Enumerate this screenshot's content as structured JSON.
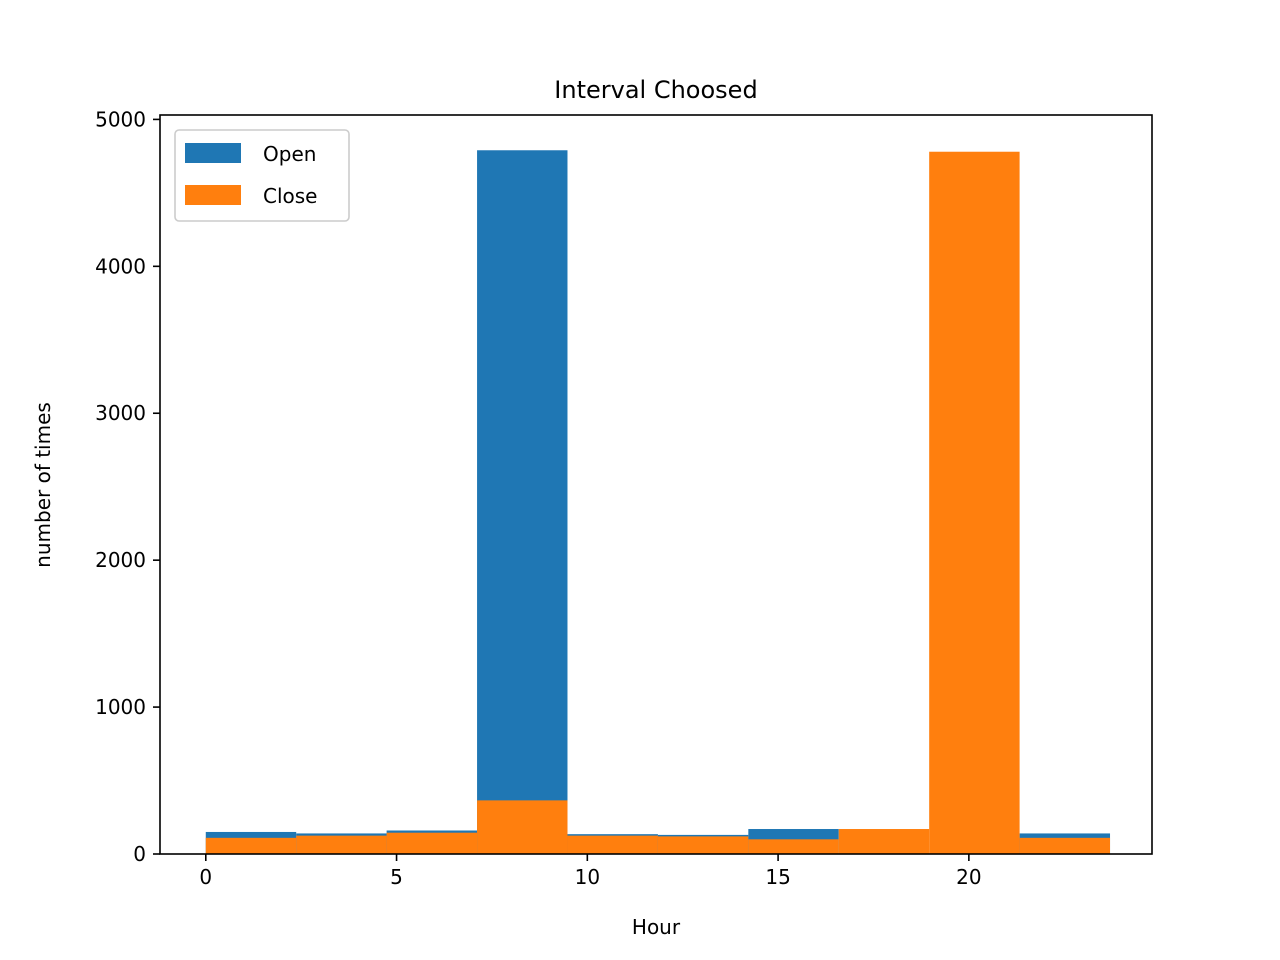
{
  "chart_data": {
    "type": "bar",
    "title": "Interval Choosed",
    "xlabel": "Hour",
    "ylabel": "number of times",
    "xlim": [
      -1.2,
      24.8
    ],
    "ylim": [
      0,
      5030
    ],
    "xticks": [
      0,
      5,
      10,
      15,
      20
    ],
    "yticks": [
      0,
      1000,
      2000,
      3000,
      4000,
      5000
    ],
    "bin_edges": [
      0,
      2.37,
      4.74,
      7.11,
      9.48,
      11.85,
      14.22,
      16.59,
      18.96,
      21.33,
      23.7
    ],
    "legend_position": "upper left",
    "series": [
      {
        "name": "Open",
        "color": "#1f77b4",
        "values": [
          150,
          140,
          160,
          4790,
          135,
          130,
          170,
          0,
          0,
          140
        ]
      },
      {
        "name": "Close",
        "color": "#ff7f0e",
        "values": [
          110,
          125,
          145,
          365,
          125,
          120,
          100,
          170,
          4780,
          110
        ]
      }
    ]
  }
}
